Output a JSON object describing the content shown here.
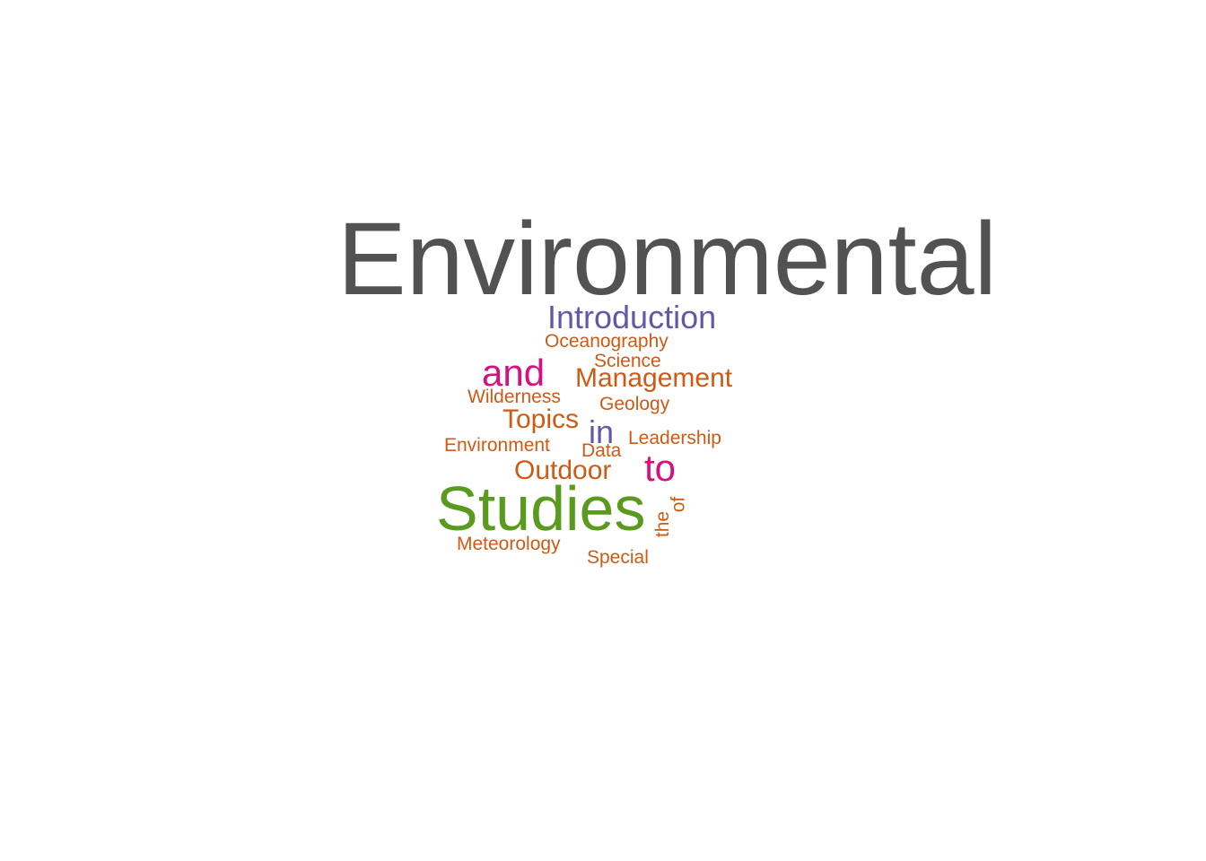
{
  "colors": {
    "background": "#ffffff",
    "gray": "#525252",
    "purple": "#6059a7",
    "magenta": "#d90f7e",
    "orange": "#cf5a14",
    "green": "#5a9a1e"
  },
  "words": {
    "environmental": "Environmental",
    "introduction": "Introduction",
    "oceanography": "Oceanography",
    "science": "Science",
    "and": "and",
    "management": "Management",
    "wilderness": "Wilderness",
    "geology": "Geology",
    "topics": "Topics",
    "in": "in",
    "leadership": "Leadership",
    "environment": "Environment",
    "data": "Data",
    "to": "to",
    "outdoor": "Outdoor",
    "studies": "Studies",
    "of": "of",
    "the": "the",
    "meteorology": "Meteorology",
    "special": "Special"
  }
}
